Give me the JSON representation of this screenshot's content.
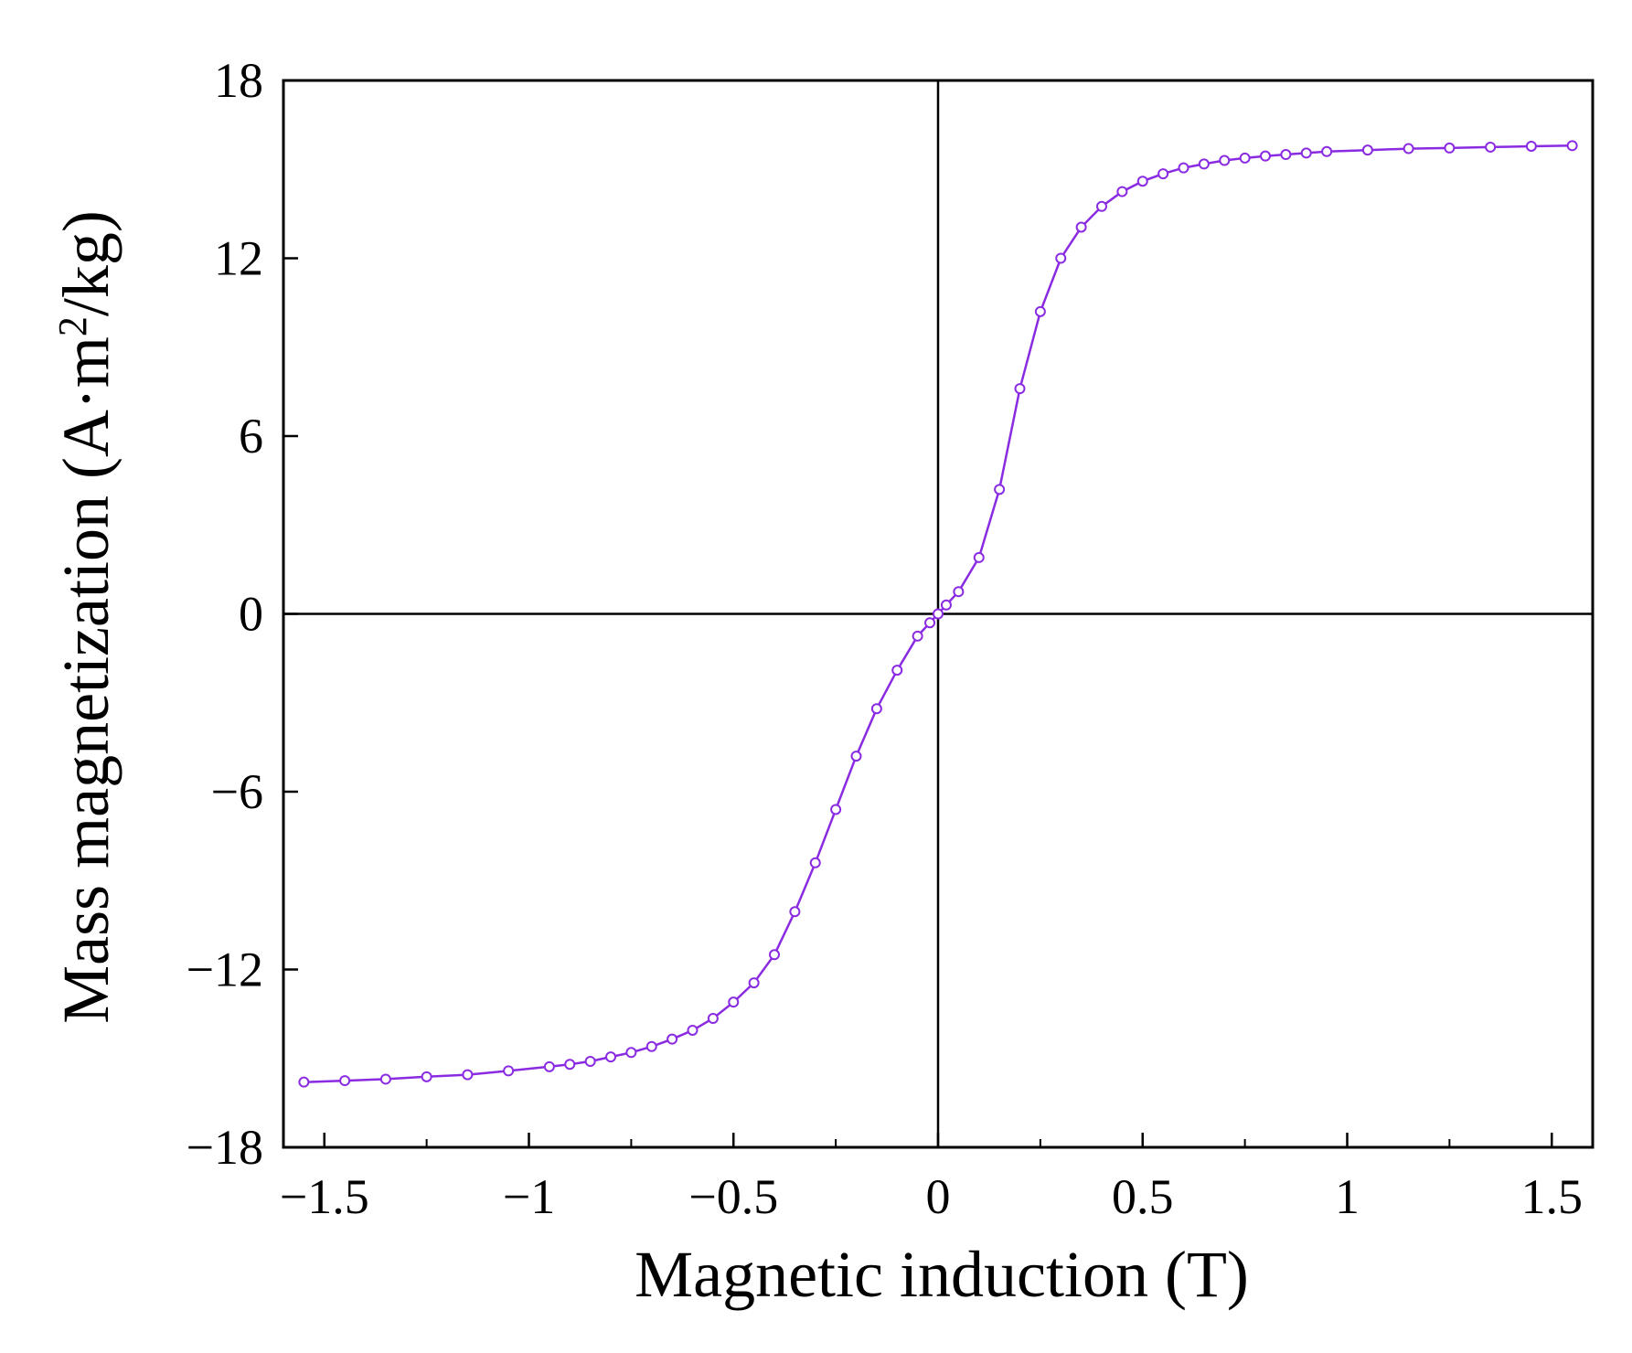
{
  "chart_data": {
    "type": "line",
    "xlabel": "Magnetic induction (T)",
    "ylabel_prefix": "Mass magnetization (A·m",
    "ylabel_superscript": "2",
    "ylabel_suffix": "/kg)",
    "xlim": [
      -1.6,
      1.6
    ],
    "ylim": [
      -18,
      18
    ],
    "x_ticks": [
      -1.5,
      -1,
      -0.5,
      0,
      0.5,
      1,
      1.5
    ],
    "x_tick_labels": [
      "−1.5",
      "−1",
      "−0.5",
      "0",
      "0.5",
      "1",
      "1.5"
    ],
    "y_ticks": [
      -18,
      -12,
      -6,
      0,
      6,
      12,
      18
    ],
    "y_tick_labels": [
      "−18",
      "−12",
      "−6",
      "0",
      "6",
      "12",
      "18"
    ],
    "zero_lines": true,
    "grid": false,
    "legend": "none",
    "series_color": "#8a2be2",
    "marker": "open-circle",
    "series": [
      {
        "x": [
          -1.55,
          -1.45,
          -1.35,
          -1.25,
          -1.15,
          -1.05,
          -0.95,
          -0.9,
          -0.85,
          -0.8,
          -0.75,
          -0.7,
          -0.65,
          -0.6,
          -0.55,
          -0.5,
          -0.45,
          -0.4,
          -0.35,
          -0.3,
          -0.25,
          -0.2,
          -0.15,
          -0.1,
          -0.05,
          -0.02,
          0,
          0.02,
          0.05,
          0.1,
          0.15,
          0.2,
          0.25,
          0.3,
          0.35,
          0.4,
          0.45,
          0.5,
          0.55,
          0.6,
          0.65,
          0.7,
          0.75,
          0.8,
          0.85,
          0.9,
          0.95,
          1.05,
          1.15,
          1.25,
          1.35,
          1.45,
          1.55
        ],
        "y": [
          -15.8,
          -15.75,
          -15.7,
          -15.62,
          -15.55,
          -15.42,
          -15.28,
          -15.2,
          -15.1,
          -14.95,
          -14.8,
          -14.6,
          -14.35,
          -14.05,
          -13.65,
          -13.1,
          -12.45,
          -11.5,
          -10.05,
          -8.4,
          -6.6,
          -4.8,
          -3.2,
          -1.9,
          -0.75,
          -0.3,
          0.0,
          0.3,
          0.75,
          1.9,
          4.2,
          7.6,
          10.2,
          12.0,
          13.05,
          13.75,
          14.25,
          14.6,
          14.85,
          15.05,
          15.18,
          15.3,
          15.38,
          15.45,
          15.5,
          15.55,
          15.6,
          15.65,
          15.7,
          15.72,
          15.75,
          15.78,
          15.8
        ]
      }
    ]
  }
}
